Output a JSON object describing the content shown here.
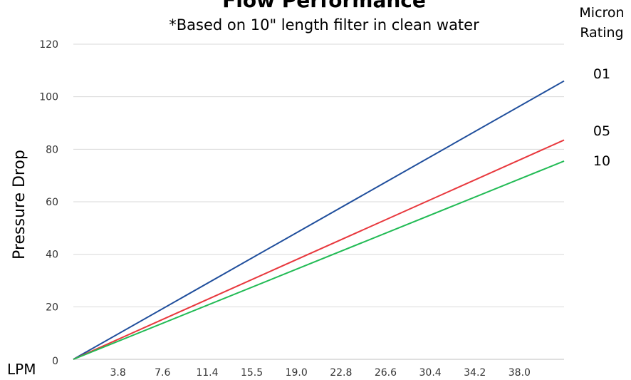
{
  "chart_data": {
    "type": "line",
    "title": "Flow Performance",
    "subtitle": "*Based on 10\" length filter in clean water",
    "ylabel": "Pressure Drop",
    "xlabel": "LPM",
    "legend_title_line1": "Micron",
    "legend_title_line2": "Rating",
    "y_origin_label": "0",
    "ylim": [
      0,
      120
    ],
    "yticks": [
      20,
      40,
      60,
      80,
      100,
      120
    ],
    "xlim": [
      0,
      40.2
    ],
    "xticks": [
      "3.8",
      "7.6",
      "11.4",
      "15.5",
      "19.0",
      "22.8",
      "26.6",
      "30.4",
      "34.2",
      "38.0"
    ],
    "grid": true,
    "series": [
      {
        "name": "01",
        "color": "#1f4e9c",
        "x": [
          0,
          40.2
        ],
        "values": [
          0,
          106
        ]
      },
      {
        "name": "05",
        "color": "#e8383d",
        "x": [
          0,
          40.2
        ],
        "values": [
          0,
          83.5
        ]
      },
      {
        "name": "10",
        "color": "#22bb55",
        "x": [
          0,
          40.2
        ],
        "values": [
          0,
          75.5
        ]
      }
    ]
  }
}
